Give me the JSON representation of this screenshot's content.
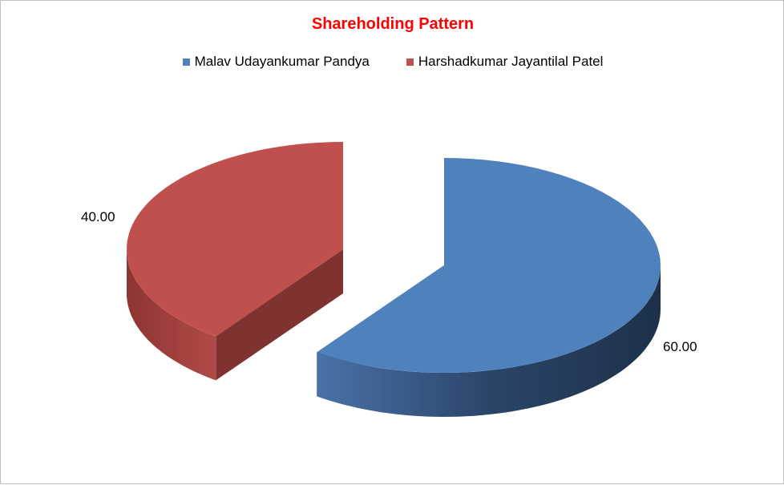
{
  "chart_data": {
    "type": "pie",
    "title": "Shareholding Pattern",
    "legend_position": "top",
    "three_d": true,
    "exploded": true,
    "categories": [
      "Malav Udayankumar Pandya",
      "Harshadkumar Jayantilal Patel"
    ],
    "values": [
      60.0,
      40.0
    ],
    "data_labels": [
      "60.00",
      "40.00"
    ],
    "colors": [
      "#4f81bd",
      "#c0504d"
    ]
  }
}
